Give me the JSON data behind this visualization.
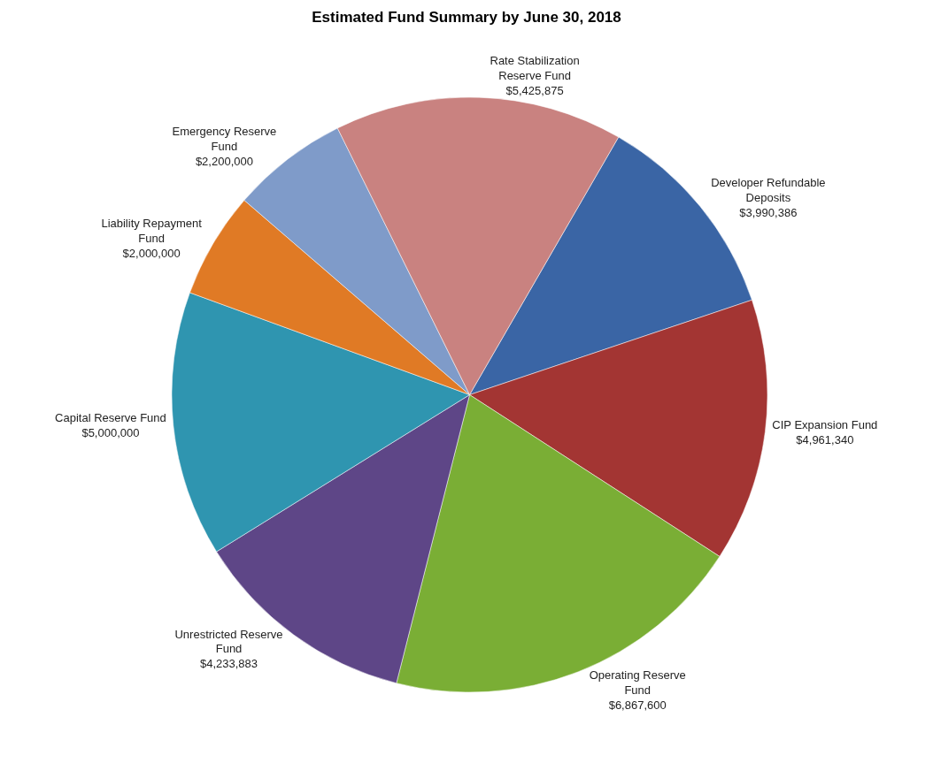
{
  "chart_data": {
    "type": "pie",
    "title": "Estimated Fund Summary by June 30, 2018",
    "categories": [
      "Developer Refundable Deposits",
      "CIP Expansion Fund",
      "Operating Reserve Fund",
      "Unrestricted Reserve Fund",
      "Capital Reserve Fund",
      "Liability Repayment Fund",
      "Emergency Reserve Fund",
      "Rate Stabilization Reserve Fund"
    ],
    "values": [
      3990386,
      4961340,
      6867600,
      4233883,
      5000000,
      2000000,
      2200000,
      5425875
    ],
    "value_labels": [
      "$3,990,386",
      "$4,961,340",
      "$6,867,600",
      "$4,233,883",
      "$5,000,000",
      "$2,000,000",
      "$2,200,000",
      "$5,425,875"
    ],
    "colors": [
      "#3a65a5",
      "#a33533",
      "#7aae35",
      "#5e4687",
      "#2f95b0",
      "#e07a25",
      "#7f9bc9",
      "#c98280"
    ],
    "legend": false
  }
}
